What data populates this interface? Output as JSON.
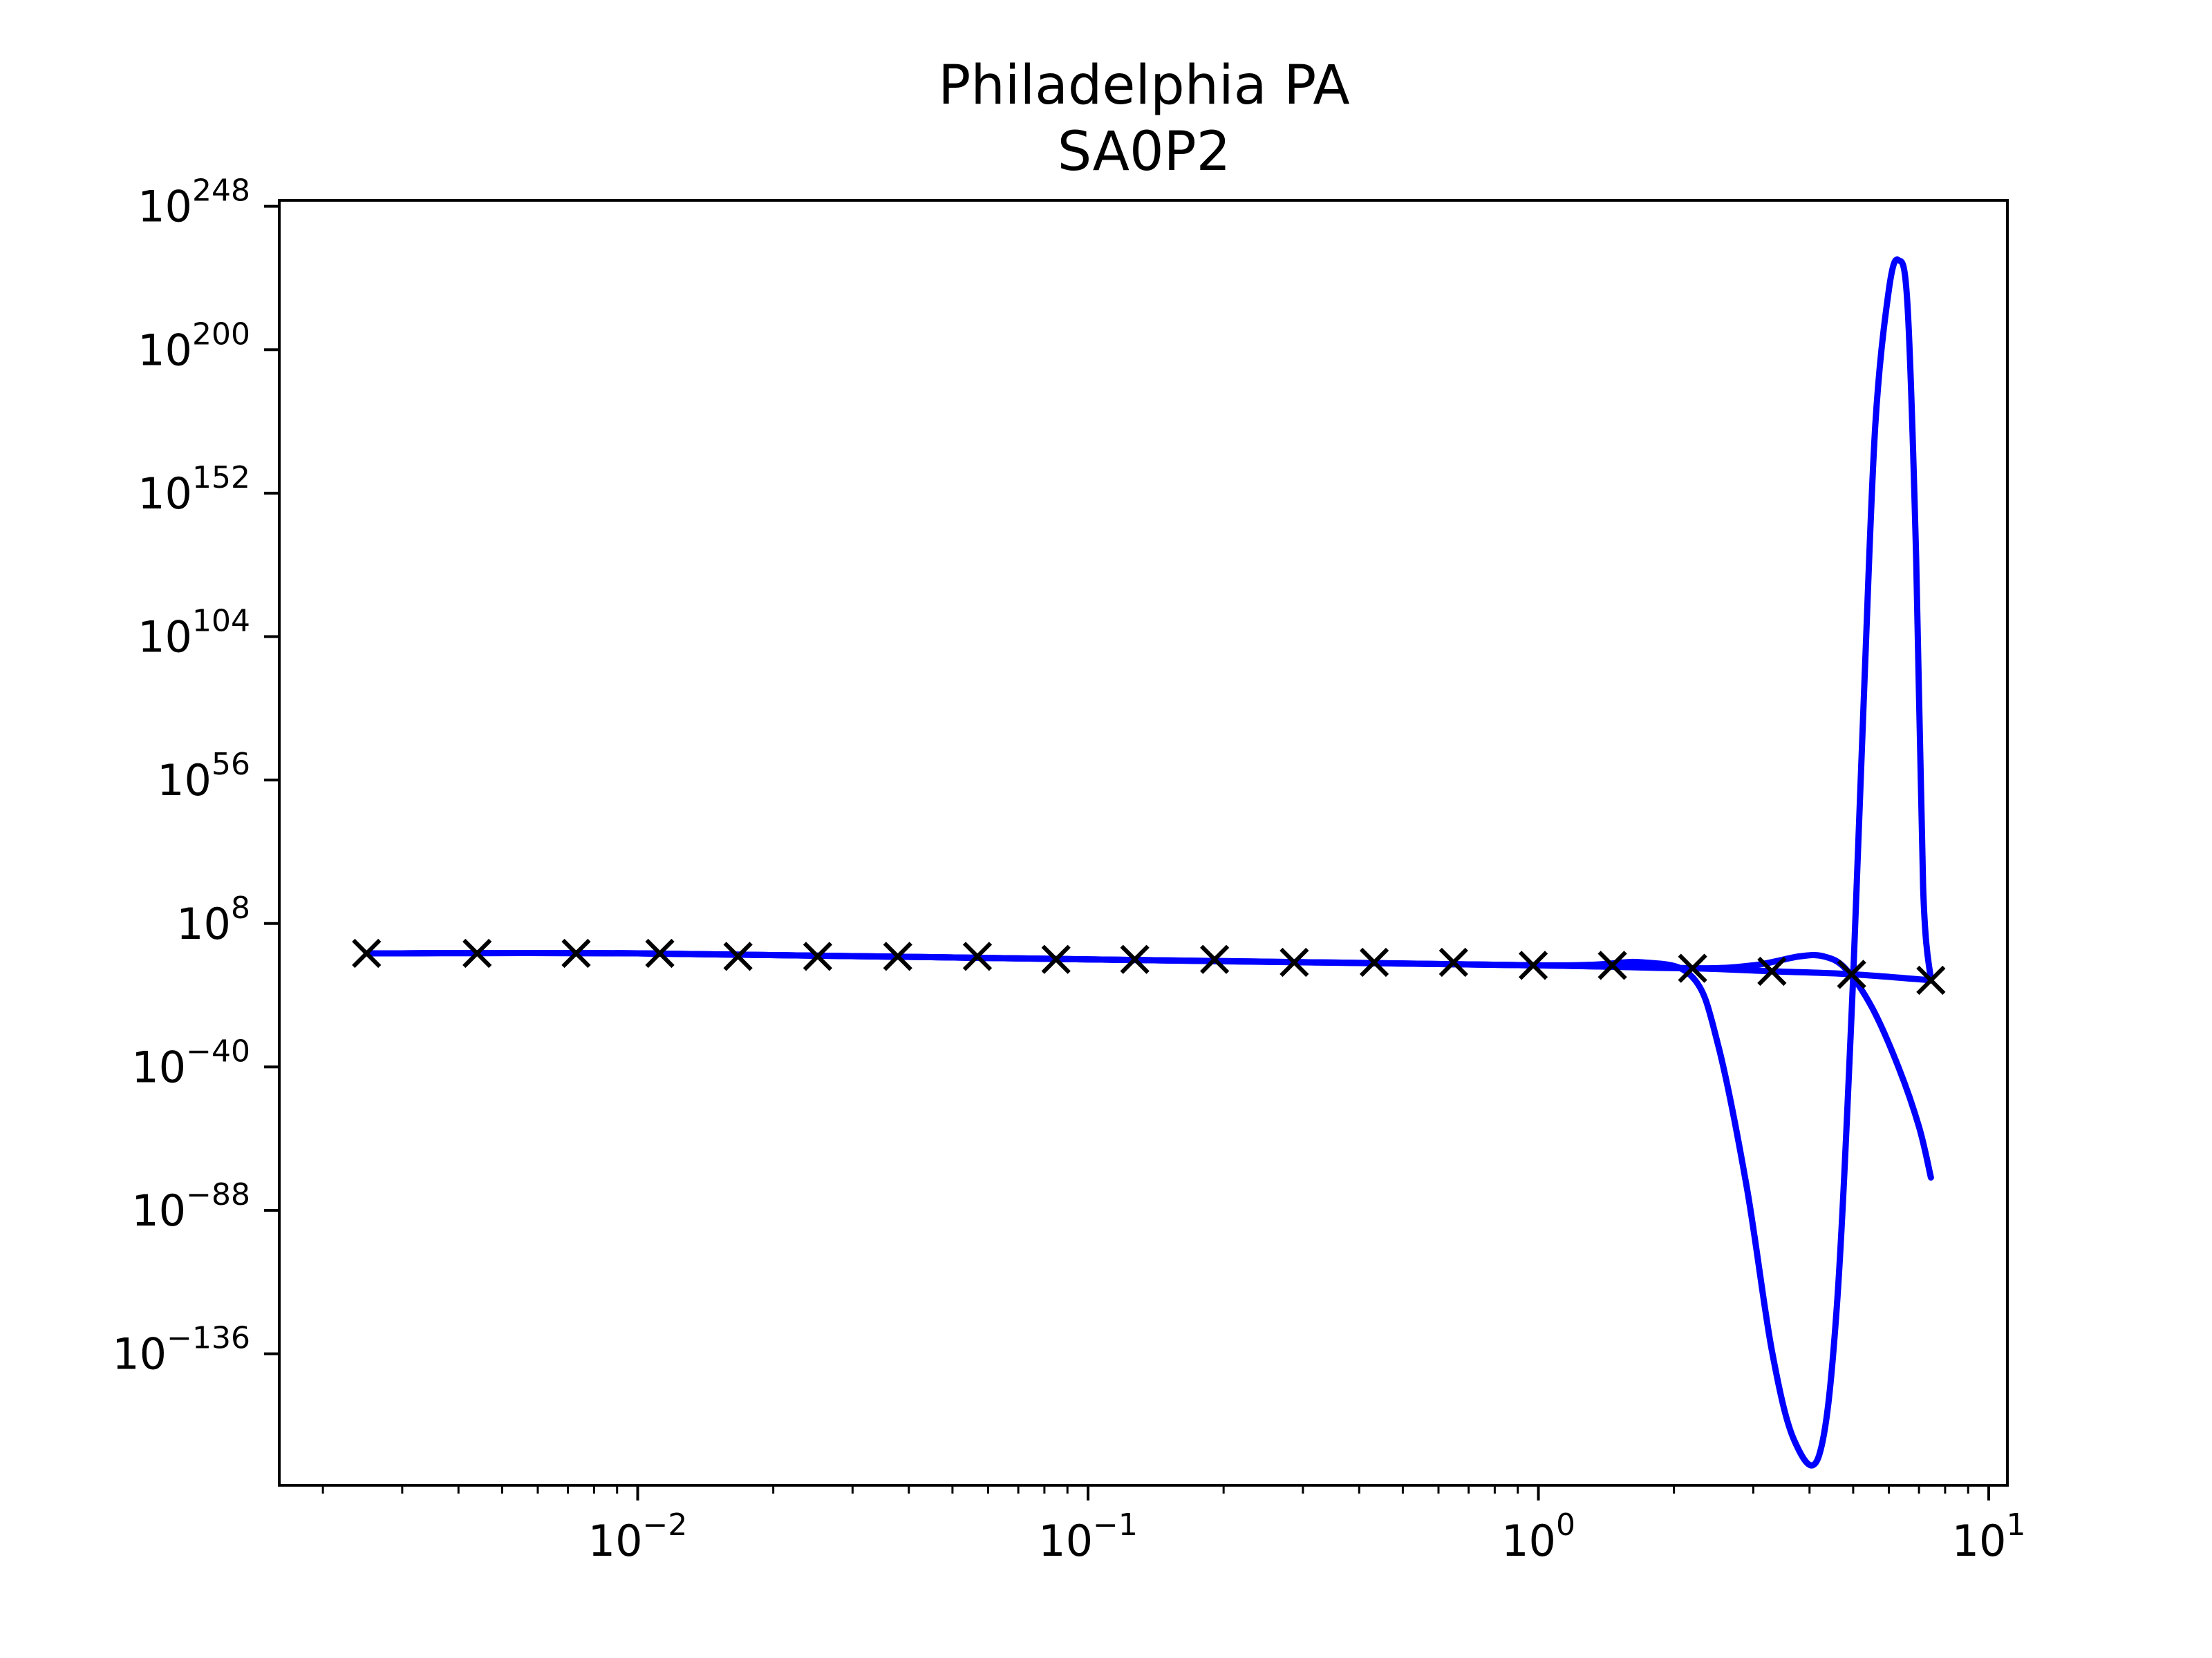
{
  "chart_data": {
    "type": "line",
    "title": "Philadelphia PA",
    "subtitle": "SA0P2",
    "xlabel": "",
    "ylabel": "",
    "xscale": "log",
    "yscale": "log",
    "xlim": [
      0.0016,
      11
    ],
    "ylim_exponent": [
      -180,
      250
    ],
    "grid": false,
    "legend": "none",
    "line_color": "#0000ff",
    "marker_color": "#000000",
    "x_tick_labels": [
      {
        "base": "10",
        "exp": "−2",
        "value": 0.01
      },
      {
        "base": "10",
        "exp": "−1",
        "value": 0.1
      },
      {
        "base": "10",
        "exp": "0",
        "value": 1
      },
      {
        "base": "10",
        "exp": "1",
        "value": 10
      }
    ],
    "y_tick_labels": [
      {
        "base": "10",
        "exp": "248",
        "value": 248
      },
      {
        "base": "10",
        "exp": "200",
        "value": 200
      },
      {
        "base": "10",
        "exp": "152",
        "value": 152
      },
      {
        "base": "10",
        "exp": "104",
        "value": 104
      },
      {
        "base": "10",
        "exp": "56",
        "value": 56
      },
      {
        "base": "10",
        "exp": "8",
        "value": 8
      },
      {
        "base": "10",
        "exp": "−40",
        "value": -40
      },
      {
        "base": "10",
        "exp": "−88",
        "value": -88
      },
      {
        "base": "10",
        "exp": "−136",
        "value": -136
      }
    ],
    "markers": {
      "x": [
        0.0025,
        0.0044,
        0.0073,
        0.0112,
        0.0167,
        0.0251,
        0.0378,
        0.0568,
        0.0849,
        0.127,
        0.191,
        0.287,
        0.432,
        0.648,
        0.974,
        1.46,
        2.2,
        3.3,
        4.96,
        7.44
      ],
      "y_exponent": [
        -2,
        -2,
        -2,
        -2,
        -3,
        -3,
        -3,
        -3,
        -4,
        -4,
        -4,
        -5,
        -5,
        -5,
        -6,
        -6,
        -7,
        -8,
        -9,
        -11
      ]
    },
    "series": [
      {
        "x": [
          0.0025,
          0.01,
          0.1,
          1.0,
          1.7,
          2.2,
          2.5,
          2.9,
          3.3,
          3.7,
          4.2,
          4.6,
          5.0,
          5.3,
          5.6,
          6.0,
          6.3,
          6.6,
          6.9,
          7.15,
          7.44
        ],
        "y_exponent": [
          -2,
          -2,
          -4,
          -6,
          -5,
          -10,
          -32,
          -80,
          -135,
          -165,
          -170,
          -120,
          -10,
          90,
          175,
          220,
          230,
          215,
          130,
          20,
          -11
        ]
      },
      {
        "x": [
          0.0025,
          0.01,
          0.1,
          1.0,
          2.2,
          3.0,
          3.8,
          4.3,
          4.8,
          5.5,
          6.3,
          7.0,
          7.44
        ],
        "y_exponent": [
          -2,
          -2,
          -4,
          -6,
          -7,
          -6,
          -3,
          -3,
          -7,
          -20,
          -40,
          -60,
          -77
        ]
      },
      {
        "x": [
          0.0025,
          0.01,
          0.1,
          1.0,
          2.2,
          3.3,
          5.0,
          7.44
        ],
        "y_exponent": [
          -2,
          -2,
          -4,
          -6,
          -7,
          -8,
          -9,
          -11
        ]
      }
    ]
  }
}
